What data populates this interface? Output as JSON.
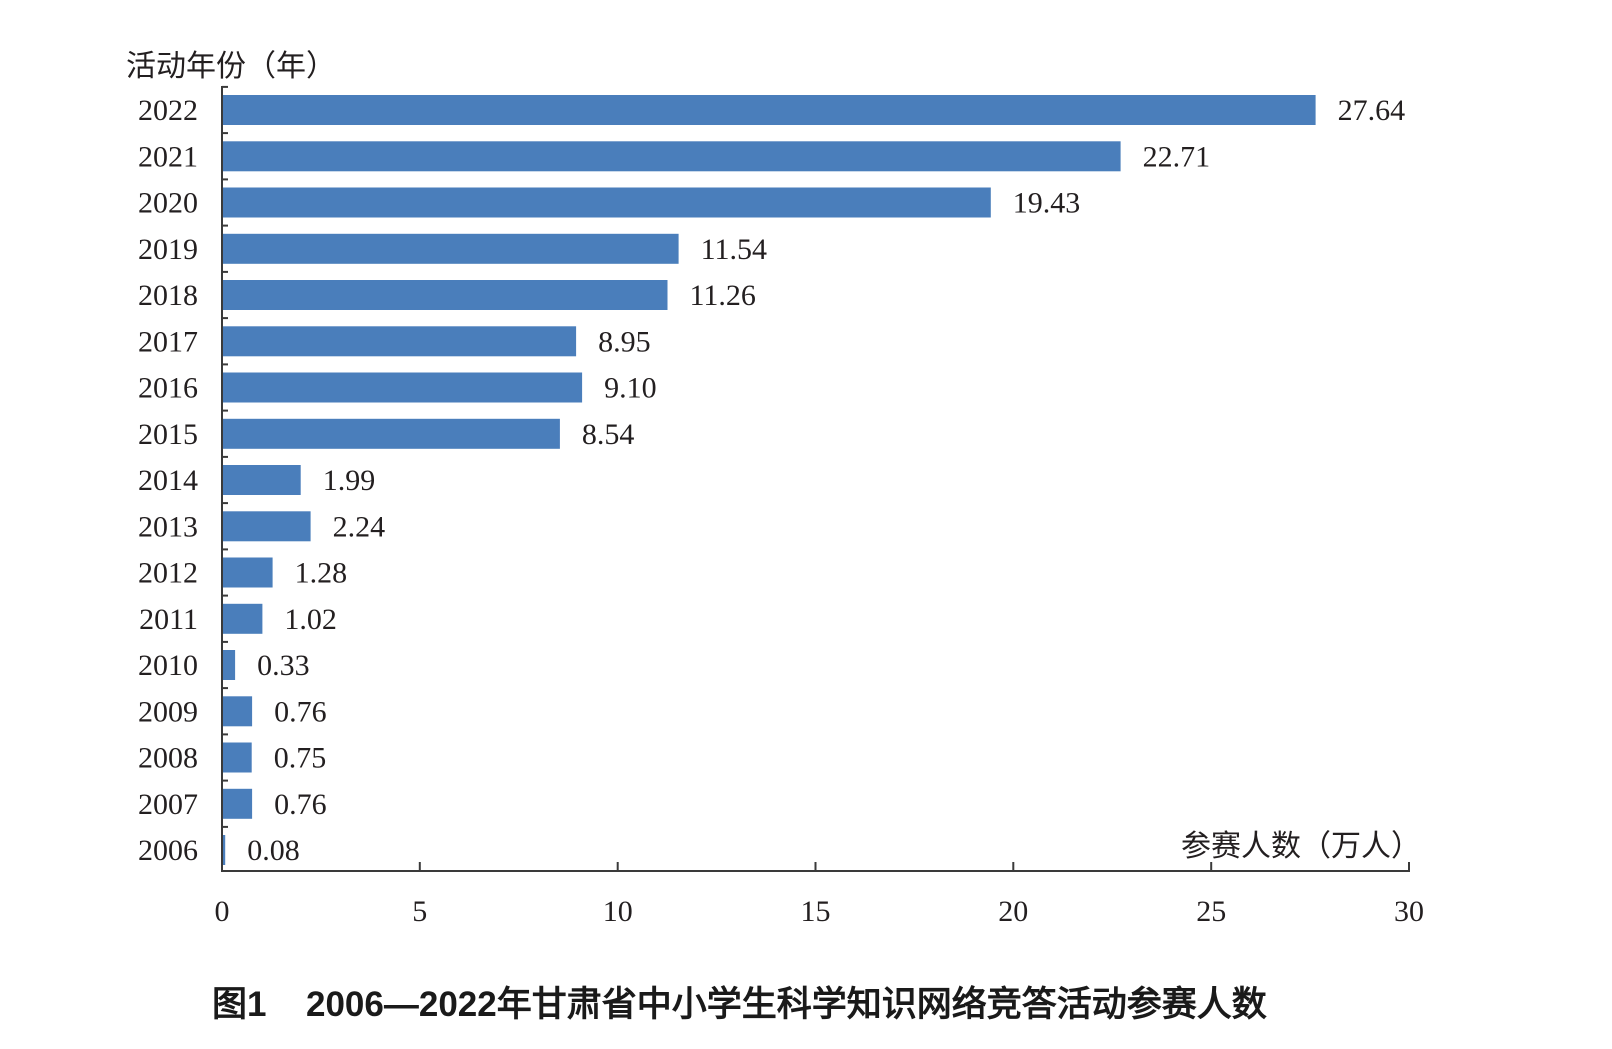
{
  "chart_data": {
    "type": "bar",
    "orientation": "horizontal",
    "categories": [
      "2006",
      "2007",
      "2008",
      "2009",
      "2010",
      "2011",
      "2012",
      "2013",
      "2014",
      "2015",
      "2016",
      "2017",
      "2018",
      "2019",
      "2020",
      "2021",
      "2022"
    ],
    "values": [
      0.08,
      0.76,
      0.75,
      0.76,
      0.33,
      1.02,
      1.28,
      2.24,
      1.99,
      8.54,
      9.1,
      8.95,
      11.26,
      11.54,
      19.43,
      22.71,
      27.64
    ],
    "data_labels": [
      "0.08",
      "0.76",
      "0.75",
      "0.76",
      "0.33",
      "1.02",
      "1.28",
      "2.24",
      "1.99",
      "8.54",
      "9.10",
      "8.95",
      "11.26",
      "11.54",
      "19.43",
      "22.71",
      "27.64"
    ],
    "xlabel": "参赛人数（万人）",
    "ylabel": "活动年份（年）",
    "xlim": [
      0,
      30
    ],
    "xticks": [
      0,
      5,
      10,
      15,
      20,
      25,
      30
    ],
    "bar_color": "#4a7ebb",
    "grid": false,
    "legend": false
  },
  "caption": {
    "label": "图1",
    "title": "2006—2022年甘肃省中小学生科学知识网络竞答活动参赛人数"
  }
}
